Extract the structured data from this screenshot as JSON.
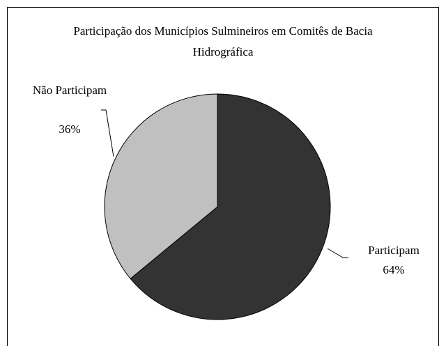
{
  "chart_data": {
    "type": "pie",
    "title": "Participação dos Municípios Sulmineiros em Comitês de Bacia Hidrográfica",
    "categories": [
      "Participam",
      "Não Participam"
    ],
    "values": [
      64,
      36
    ],
    "value_labels": [
      "64%",
      "36%"
    ],
    "colors": [
      "#333333",
      "#c0c0c0"
    ]
  }
}
